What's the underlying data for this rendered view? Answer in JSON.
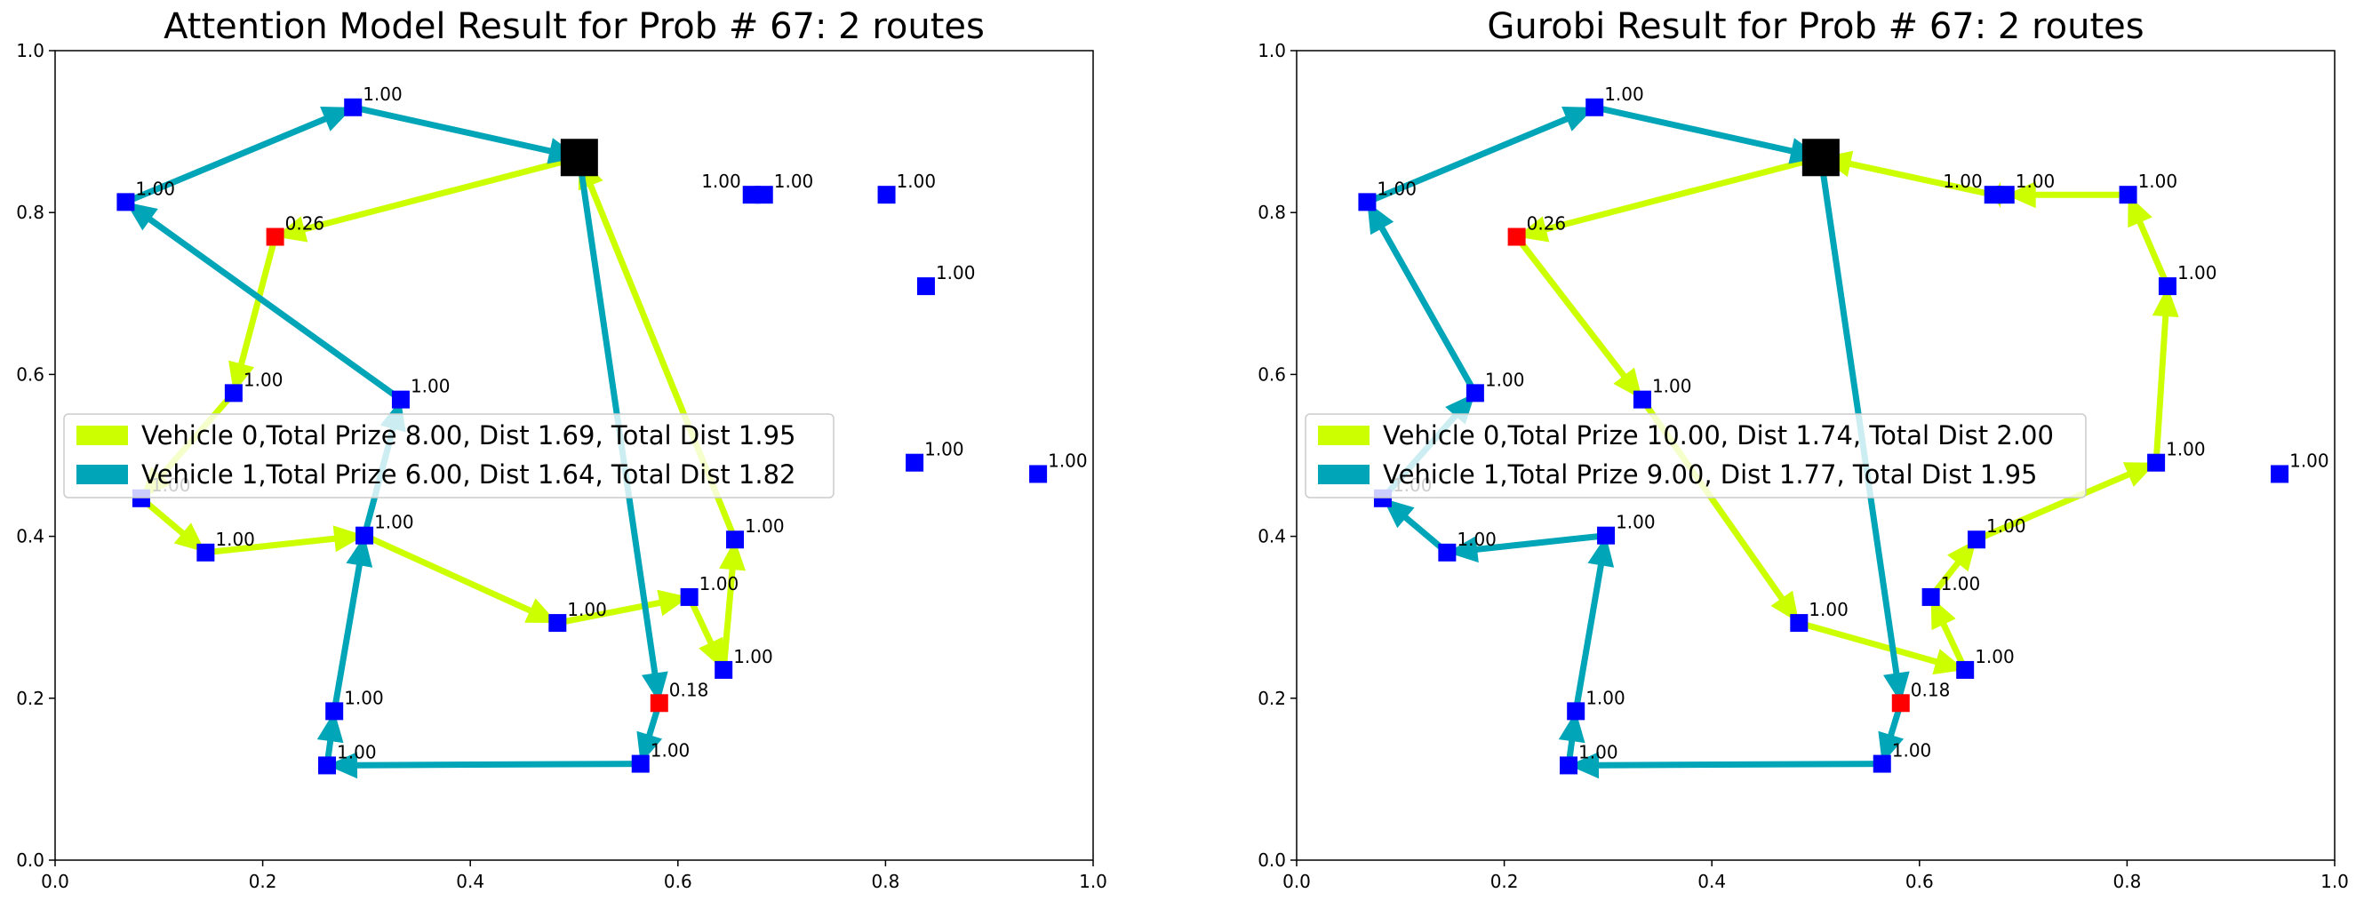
{
  "chart_data": [
    {
      "type": "scatter",
      "title": "Attention Model Result for Prob # 67: 2 routes",
      "xlim": [
        0,
        1
      ],
      "ylim": [
        0,
        1
      ],
      "xticks": [
        "0.0",
        "0.2",
        "0.4",
        "0.6",
        "0.8",
        "1.0"
      ],
      "yticks": [
        "0.0",
        "0.2",
        "0.4",
        "0.6",
        "0.8",
        "1.0"
      ],
      "grid": false,
      "legend_position": "center-left",
      "depot": {
        "x": 0.505,
        "y": 0.868
      },
      "nodes": [
        {
          "x": 0.287,
          "y": 0.93,
          "label": "1.00",
          "color": "#0000ff"
        },
        {
          "x": 0.068,
          "y": 0.813,
          "label": "1.00",
          "color": "#0000ff"
        },
        {
          "x": 0.212,
          "y": 0.77,
          "label": "0.26",
          "color": "#ff0000"
        },
        {
          "x": 0.172,
          "y": 0.577,
          "label": "1.00",
          "color": "#0000ff"
        },
        {
          "x": 0.333,
          "y": 0.569,
          "label": "1.00",
          "color": "#0000ff"
        },
        {
          "x": 0.083,
          "y": 0.447,
          "label": "1.00",
          "color": "#0000ff"
        },
        {
          "x": 0.145,
          "y": 0.38,
          "label": "1.00",
          "color": "#0000ff"
        },
        {
          "x": 0.298,
          "y": 0.401,
          "label": "1.00",
          "color": "#0000ff"
        },
        {
          "x": 0.484,
          "y": 0.293,
          "label": "1.00",
          "color": "#0000ff"
        },
        {
          "x": 0.611,
          "y": 0.325,
          "label": "1.00",
          "color": "#0000ff"
        },
        {
          "x": 0.655,
          "y": 0.396,
          "label": "1.00",
          "color": "#0000ff"
        },
        {
          "x": 0.644,
          "y": 0.235,
          "label": "1.00",
          "color": "#0000ff"
        },
        {
          "x": 0.582,
          "y": 0.194,
          "label": "0.18",
          "color": "#ff0000"
        },
        {
          "x": 0.564,
          "y": 0.119,
          "label": "1.00",
          "color": "#0000ff"
        },
        {
          "x": 0.262,
          "y": 0.117,
          "label": "1.00",
          "color": "#0000ff"
        },
        {
          "x": 0.269,
          "y": 0.184,
          "label": "1.00",
          "color": "#0000ff"
        },
        {
          "x": 0.671,
          "y": 0.822,
          "label": "1.00",
          "color": "#0000ff",
          "label_side": "left"
        },
        {
          "x": 0.683,
          "y": 0.822,
          "label": "1.00",
          "color": "#0000ff"
        },
        {
          "x": 0.801,
          "y": 0.822,
          "label": "1.00",
          "color": "#0000ff"
        },
        {
          "x": 0.839,
          "y": 0.709,
          "label": "1.00",
          "color": "#0000ff"
        },
        {
          "x": 0.828,
          "y": 0.491,
          "label": "1.00",
          "color": "#0000ff"
        },
        {
          "x": 0.947,
          "y": 0.477,
          "label": "1.00",
          "color": "#0000ff"
        }
      ],
      "series": [
        {
          "name": "Vehicle 0,Total Prize 8.00, Dist 1.69, Total Dist 1.95",
          "color": "#ccff00",
          "route": [
            [
              0.505,
              0.868
            ],
            [
              0.212,
              0.77
            ],
            [
              0.172,
              0.577
            ],
            [
              0.083,
              0.447
            ],
            [
              0.145,
              0.38
            ],
            [
              0.298,
              0.401
            ],
            [
              0.484,
              0.293
            ],
            [
              0.611,
              0.325
            ],
            [
              0.644,
              0.235
            ],
            [
              0.655,
              0.396
            ],
            [
              0.505,
              0.868
            ]
          ]
        },
        {
          "name": "Vehicle 1,Total Prize 6.00, Dist 1.64, Total Dist 1.82",
          "color": "#00a5b8",
          "route": [
            [
              0.505,
              0.868
            ],
            [
              0.582,
              0.194
            ],
            [
              0.564,
              0.119
            ],
            [
              0.262,
              0.117
            ],
            [
              0.269,
              0.184
            ],
            [
              0.298,
              0.401
            ],
            [
              0.333,
              0.569
            ],
            [
              0.068,
              0.813
            ],
            [
              0.287,
              0.93
            ],
            [
              0.505,
              0.868
            ]
          ]
        }
      ]
    },
    {
      "type": "scatter",
      "title": "Gurobi Result for Prob # 67: 2 routes",
      "xlim": [
        0,
        1
      ],
      "ylim": [
        0,
        1
      ],
      "xticks": [
        "0.0",
        "0.2",
        "0.4",
        "0.6",
        "0.8",
        "1.0"
      ],
      "yticks": [
        "0.0",
        "0.2",
        "0.4",
        "0.6",
        "0.8",
        "1.0"
      ],
      "grid": false,
      "legend_position": "center-left",
      "depot": {
        "x": 0.505,
        "y": 0.868
      },
      "nodes": [
        {
          "x": 0.287,
          "y": 0.93,
          "label": "1.00",
          "color": "#0000ff"
        },
        {
          "x": 0.068,
          "y": 0.813,
          "label": "1.00",
          "color": "#0000ff"
        },
        {
          "x": 0.212,
          "y": 0.77,
          "label": "0.26",
          "color": "#ff0000"
        },
        {
          "x": 0.172,
          "y": 0.577,
          "label": "1.00",
          "color": "#0000ff"
        },
        {
          "x": 0.333,
          "y": 0.569,
          "label": "1.00",
          "color": "#0000ff"
        },
        {
          "x": 0.083,
          "y": 0.447,
          "label": "1.00",
          "color": "#0000ff"
        },
        {
          "x": 0.145,
          "y": 0.38,
          "label": "1.00",
          "color": "#0000ff"
        },
        {
          "x": 0.298,
          "y": 0.401,
          "label": "1.00",
          "color": "#0000ff"
        },
        {
          "x": 0.484,
          "y": 0.293,
          "label": "1.00",
          "color": "#0000ff"
        },
        {
          "x": 0.611,
          "y": 0.325,
          "label": "1.00",
          "color": "#0000ff"
        },
        {
          "x": 0.655,
          "y": 0.396,
          "label": "1.00",
          "color": "#0000ff"
        },
        {
          "x": 0.644,
          "y": 0.235,
          "label": "1.00",
          "color": "#0000ff"
        },
        {
          "x": 0.582,
          "y": 0.194,
          "label": "0.18",
          "color": "#ff0000"
        },
        {
          "x": 0.564,
          "y": 0.119,
          "label": "1.00",
          "color": "#0000ff"
        },
        {
          "x": 0.262,
          "y": 0.117,
          "label": "1.00",
          "color": "#0000ff"
        },
        {
          "x": 0.269,
          "y": 0.184,
          "label": "1.00",
          "color": "#0000ff"
        },
        {
          "x": 0.671,
          "y": 0.822,
          "label": "1.00",
          "color": "#0000ff",
          "label_side": "left"
        },
        {
          "x": 0.683,
          "y": 0.822,
          "label": "1.00",
          "color": "#0000ff"
        },
        {
          "x": 0.801,
          "y": 0.822,
          "label": "1.00",
          "color": "#0000ff"
        },
        {
          "x": 0.839,
          "y": 0.709,
          "label": "1.00",
          "color": "#0000ff"
        },
        {
          "x": 0.828,
          "y": 0.491,
          "label": "1.00",
          "color": "#0000ff"
        },
        {
          "x": 0.947,
          "y": 0.477,
          "label": "1.00",
          "color": "#0000ff"
        }
      ],
      "series": [
        {
          "name": "Vehicle 0,Total Prize 10.00, Dist 1.74, Total Dist 2.00",
          "color": "#ccff00",
          "route": [
            [
              0.505,
              0.868
            ],
            [
              0.212,
              0.77
            ],
            [
              0.333,
              0.569
            ],
            [
              0.484,
              0.293
            ],
            [
              0.644,
              0.235
            ],
            [
              0.611,
              0.325
            ],
            [
              0.655,
              0.396
            ],
            [
              0.828,
              0.491
            ],
            [
              0.839,
              0.709
            ],
            [
              0.801,
              0.822
            ],
            [
              0.683,
              0.822
            ],
            [
              0.671,
              0.822
            ],
            [
              0.505,
              0.868
            ]
          ]
        },
        {
          "name": "Vehicle 1,Total Prize 9.00, Dist 1.77, Total Dist 1.95",
          "color": "#00a5b8",
          "route": [
            [
              0.505,
              0.868
            ],
            [
              0.582,
              0.194
            ],
            [
              0.564,
              0.119
            ],
            [
              0.262,
              0.117
            ],
            [
              0.269,
              0.184
            ],
            [
              0.298,
              0.401
            ],
            [
              0.145,
              0.38
            ],
            [
              0.083,
              0.447
            ],
            [
              0.172,
              0.577
            ],
            [
              0.068,
              0.813
            ],
            [
              0.287,
              0.93
            ],
            [
              0.505,
              0.868
            ]
          ]
        }
      ]
    }
  ]
}
